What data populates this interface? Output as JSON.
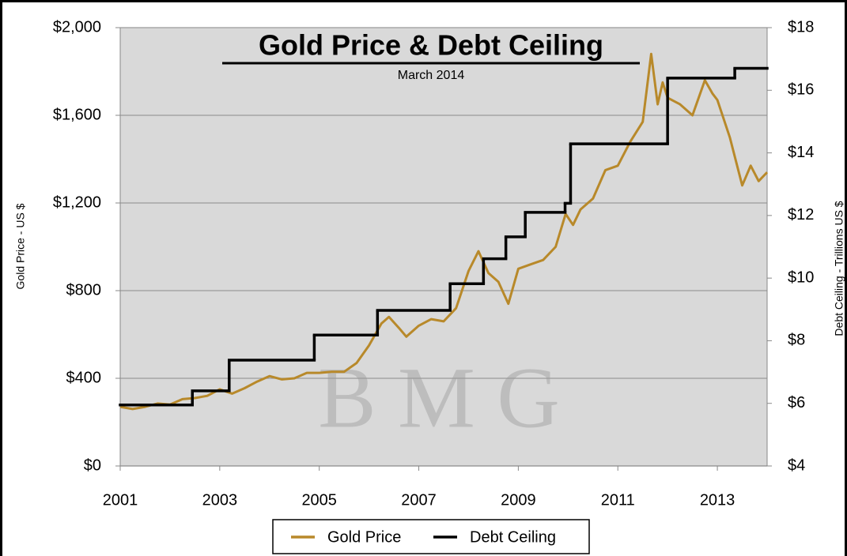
{
  "chart_data": {
    "type": "line",
    "title": "Gold Price & Debt Ceiling",
    "subtitle": "March 2014",
    "watermark": "B M G",
    "ylabel": "Gold Price - US $",
    "y2label": "Debt Ceiling - Trillions US $",
    "xlim": [
      2001,
      2014
    ],
    "xticks": [
      2001,
      2003,
      2005,
      2007,
      2009,
      2011,
      2013
    ],
    "ylim": [
      0,
      2000
    ],
    "yticks": [
      {
        "value": 0,
        "label": "$0"
      },
      {
        "value": 400,
        "label": "$400"
      },
      {
        "value": 800,
        "label": "$800"
      },
      {
        "value": 1200,
        "label": "$1,200"
      },
      {
        "value": 1600,
        "label": "$1,600"
      },
      {
        "value": 2000,
        "label": "$2,000"
      }
    ],
    "y2lim": [
      4,
      18
    ],
    "y2ticks": [
      {
        "value": 4,
        "label": "$4"
      },
      {
        "value": 6,
        "label": "$6"
      },
      {
        "value": 8,
        "label": "$8"
      },
      {
        "value": 10,
        "label": "$10"
      },
      {
        "value": 12,
        "label": "$12"
      },
      {
        "value": 14,
        "label": "$14"
      },
      {
        "value": 16,
        "label": "$16"
      },
      {
        "value": 18,
        "label": "$18"
      }
    ],
    "grid": true,
    "legend": "bottom",
    "series": [
      {
        "name": "Gold Price",
        "color": "#b8892a",
        "axis": "y",
        "x": [
          2001.0,
          2001.25,
          2001.5,
          2001.75,
          2002.0,
          2002.25,
          2002.5,
          2002.75,
          2003.0,
          2003.25,
          2003.5,
          2003.75,
          2004.0,
          2004.25,
          2004.5,
          2004.75,
          2005.0,
          2005.25,
          2005.5,
          2005.75,
          2006.0,
          2006.25,
          2006.4,
          2006.6,
          2006.75,
          2007.0,
          2007.25,
          2007.5,
          2007.75,
          2008.0,
          2008.2,
          2008.4,
          2008.6,
          2008.8,
          2009.0,
          2009.25,
          2009.5,
          2009.75,
          2009.95,
          2010.1,
          2010.25,
          2010.5,
          2010.75,
          2011.0,
          2011.25,
          2011.5,
          2011.67,
          2011.8,
          2011.9,
          2012.0,
          2012.25,
          2012.5,
          2012.75,
          2012.9,
          2013.0,
          2013.25,
          2013.5,
          2013.67,
          2013.83,
          2014.0
        ],
        "values": [
          270,
          260,
          270,
          285,
          280,
          305,
          310,
          320,
          350,
          330,
          355,
          385,
          410,
          395,
          400,
          425,
          425,
          430,
          430,
          470,
          550,
          650,
          680,
          630,
          590,
          640,
          670,
          660,
          720,
          890,
          980,
          880,
          840,
          740,
          900,
          920,
          940,
          1000,
          1150,
          1100,
          1170,
          1220,
          1350,
          1370,
          1480,
          1570,
          1880,
          1650,
          1750,
          1680,
          1650,
          1600,
          1760,
          1700,
          1670,
          1500,
          1280,
          1370,
          1300,
          1340
        ]
      },
      {
        "name": "Debt Ceiling",
        "color": "#000000",
        "axis": "y2",
        "drawstyle": "steps-post",
        "x": [
          2001.0,
          2002.45,
          2003.19,
          2004.9,
          2006.17,
          2007.63,
          2008.3,
          2008.75,
          2009.14,
          2009.94,
          2010.05,
          2012.0,
          2013.35
        ],
        "values": [
          5.95,
          6.4,
          7.38,
          8.18,
          8.97,
          9.82,
          10.62,
          11.32,
          12.1,
          12.39,
          14.29,
          16.39,
          16.7
        ]
      }
    ]
  }
}
